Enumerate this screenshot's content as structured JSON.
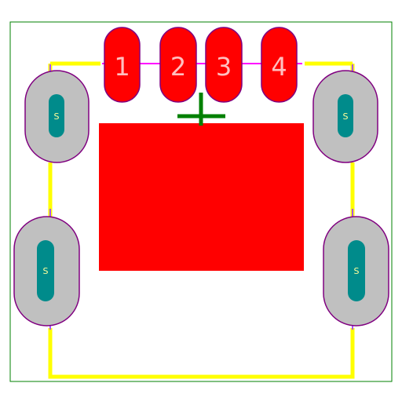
{
  "footprint": {
    "pads": [
      {
        "id": "pad-1",
        "label": "1"
      },
      {
        "id": "pad-2",
        "label": "2"
      },
      {
        "id": "pad-3",
        "label": "3"
      },
      {
        "id": "pad-4",
        "label": "4"
      }
    ],
    "shield_pads": [
      {
        "id": "shield-top-left",
        "label": "S"
      },
      {
        "id": "shield-top-right",
        "label": "S"
      },
      {
        "id": "shield-bottom-left",
        "label": "S"
      },
      {
        "id": "shield-bottom-right",
        "label": "S"
      }
    ],
    "colors": {
      "pad": "#ff0000",
      "pad_outline": "#800080",
      "pad_label": "#ffc0c0",
      "shield_pad": "#c0c0c0",
      "drill": "#008b8b",
      "shield_label": "#ffff99",
      "silkscreen": "#ffff00",
      "courtyard": "#008000",
      "origin_marker": "#008000",
      "fab_line": "#ff00ff"
    }
  }
}
